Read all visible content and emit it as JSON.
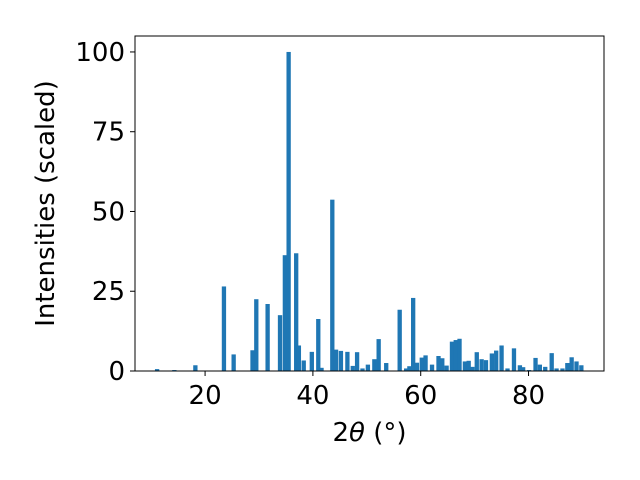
{
  "chart_data": {
    "type": "bar",
    "xlabel_main": "2",
    "xlabel_theta": "θ",
    "xlabel_unit": " (°)",
    "ylabel": "Intensities (scaled)",
    "xlim": [
      7,
      94
    ],
    "ylim": [
      0,
      105
    ],
    "bar_color": "#1f77b4",
    "bar_width": 0.8,
    "grid": false,
    "x_ticks": [
      20,
      40,
      60,
      80
    ],
    "y_ticks": [
      0,
      25,
      50,
      75,
      100
    ],
    "x": [
      11.1,
      14.3,
      18.2,
      23.5,
      25.3,
      28.8,
      29.5,
      31.6,
      33.9,
      34.8,
      35.5,
      36.9,
      37.4,
      38.3,
      39.8,
      41.0,
      41.6,
      43.6,
      44.3,
      45.2,
      46.4,
      47.4,
      48.2,
      49.2,
      50.2,
      51.4,
      52.2,
      53.6,
      56.1,
      57.3,
      57.9,
      58.6,
      59.3,
      60.2,
      60.9,
      62.1,
      63.3,
      64.0,
      64.8,
      65.8,
      66.5,
      67.2,
      68.2,
      68.9,
      69.6,
      70.4,
      71.3,
      72.1,
      73.2,
      74.0,
      75.0,
      76.1,
      77.3,
      78.4,
      79.0,
      80.1,
      81.3,
      82.1,
      83.1,
      84.3,
      85.2,
      86.3,
      87.2,
      88.0,
      88.9,
      89.8
    ],
    "values": [
      0.6,
      0.3,
      1.8,
      26.5,
      5.2,
      6.5,
      22.5,
      21.0,
      17.5,
      36.3,
      100.0,
      36.9,
      8.0,
      3.3,
      6.0,
      16.3,
      1.0,
      53.7,
      6.7,
      6.3,
      6.0,
      1.6,
      5.9,
      0.8,
      2.0,
      3.7,
      10.0,
      2.5,
      19.2,
      0.8,
      1.5,
      22.9,
      2.6,
      4.2,
      4.9,
      2.0,
      4.7,
      4.0,
      1.7,
      9.2,
      9.7,
      10.1,
      3.0,
      3.2,
      1.3,
      5.9,
      3.7,
      3.4,
      5.5,
      6.4,
      8.0,
      0.8,
      7.1,
      1.8,
      1.2,
      0.3,
      4.1,
      2.0,
      1.3,
      5.6,
      0.8,
      0.8,
      2.5,
      4.3,
      3.0,
      1.8
    ]
  }
}
